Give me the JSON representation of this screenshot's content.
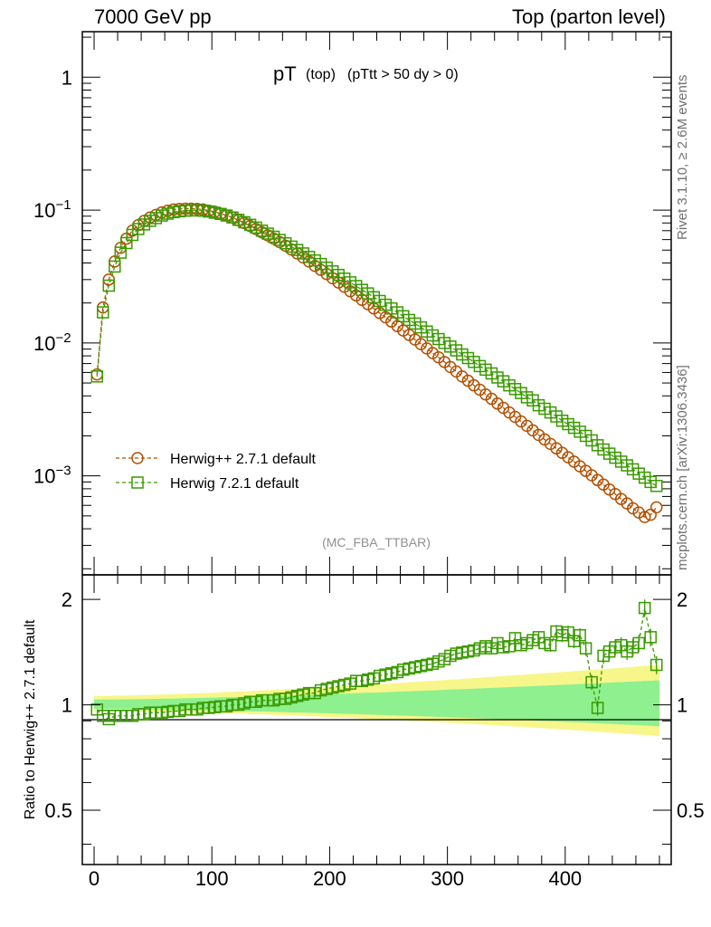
{
  "header": {
    "left": "7000 GeV pp",
    "right": "Top (parton level)"
  },
  "side_labels": {
    "rivet": "Rivet 3.1.10, ≥ 2.6M events",
    "mcplots": "mcplots.cern.ch [arXiv:1306.3436]"
  },
  "chart_data": [
    {
      "type": "line",
      "title": "pT",
      "title_small": "(top)",
      "title_cut": "(pTtt > 50 dy > 0)",
      "analysis_tag": "(MC_FBA_TTBAR)",
      "xlim": [
        -10,
        490
      ],
      "ylim": [
        0.00018,
        2.2
      ],
      "yscale": "log",
      "yticks": [
        "1",
        "10^-1",
        "10^-2",
        "10^-3"
      ],
      "legend_position": "bottom-left",
      "x": [
        2.5,
        7.5,
        12.5,
        17.5,
        22.5,
        27.5,
        32.5,
        37.5,
        42.5,
        47.5,
        52.5,
        57.5,
        62.5,
        67.5,
        72.5,
        77.5,
        82.5,
        87.5,
        92.5,
        97.5,
        102.5,
        107.5,
        112.5,
        117.5,
        122.5,
        127.5,
        132.5,
        137.5,
        142.5,
        147.5,
        152.5,
        157.5,
        162.5,
        167.5,
        172.5,
        177.5,
        182.5,
        187.5,
        192.5,
        197.5,
        202.5,
        207.5,
        212.5,
        217.5,
        222.5,
        227.5,
        232.5,
        237.5,
        242.5,
        247.5,
        252.5,
        257.5,
        262.5,
        267.5,
        272.5,
        277.5,
        282.5,
        287.5,
        292.5,
        297.5,
        302.5,
        307.5,
        312.5,
        317.5,
        322.5,
        327.5,
        332.5,
        337.5,
        342.5,
        347.5,
        352.5,
        357.5,
        362.5,
        367.5,
        372.5,
        377.5,
        382.5,
        387.5,
        392.5,
        397.5,
        402.5,
        407.5,
        412.5,
        417.5,
        422.5,
        427.5,
        432.5,
        437.5,
        442.5,
        447.5,
        452.5,
        457.5,
        462.5,
        467.5,
        472.5,
        477.5
      ],
      "series": [
        {
          "name": "Herwig++ 2.7.1 default",
          "color": "#b25000",
          "marker": "circle",
          "values": [
            0.0058,
            0.0185,
            0.03,
            0.041,
            0.052,
            0.061,
            0.07,
            0.077,
            0.083,
            0.088,
            0.092,
            0.096,
            0.099,
            0.101,
            0.102,
            0.1025,
            0.1025,
            0.102,
            0.101,
            0.099,
            0.097,
            0.094,
            0.091,
            0.088,
            0.084,
            0.08,
            0.076,
            0.072,
            0.068,
            0.0645,
            0.061,
            0.0575,
            0.054,
            0.0505,
            0.0472,
            0.044,
            0.041,
            0.038,
            0.0355,
            0.033,
            0.0307,
            0.0285,
            0.0265,
            0.0245,
            0.0228,
            0.0211,
            0.0196,
            0.0182,
            0.0168,
            0.0156,
            0.0145,
            0.0134,
            0.0124,
            0.0115,
            0.0106,
            0.0098,
            0.0091,
            0.0084,
            0.0078,
            0.0072,
            0.0066,
            0.0061,
            0.0056,
            0.0052,
            0.0048,
            0.00445,
            0.0041,
            0.0038,
            0.0035,
            0.00325,
            0.003,
            0.00278,
            0.00257,
            0.00238,
            0.0022,
            0.00203,
            0.00188,
            0.00174,
            0.00161,
            0.00149,
            0.00138,
            0.00128,
            0.00118,
            0.00109,
            0.00101,
            0.00093,
            0.00086,
            0.00079,
            0.00073,
            0.00067,
            0.00062,
            0.00057,
            0.00053,
            0.00049,
            0.00051,
            0.00058
          ]
        },
        {
          "name": "Herwig 7.2.1 default",
          "color": "#3a9a00",
          "marker": "square",
          "values": [
            0.0056,
            0.017,
            0.027,
            0.0376,
            0.0478,
            0.0565,
            0.065,
            0.072,
            0.078,
            0.083,
            0.087,
            0.091,
            0.094,
            0.0965,
            0.098,
            0.099,
            0.0995,
            0.0995,
            0.099,
            0.0975,
            0.0955,
            0.0935,
            0.091,
            0.088,
            0.0845,
            0.081,
            0.0775,
            0.0738,
            0.07,
            0.0665,
            0.063,
            0.0596,
            0.0563,
            0.0531,
            0.0501,
            0.0472,
            0.0444,
            0.0418,
            0.0393,
            0.0369,
            0.0346,
            0.0325,
            0.0305,
            0.0286,
            0.0268,
            0.0251,
            0.0236,
            0.0221,
            0.0207,
            0.0194,
            0.0182,
            0.017,
            0.0159,
            0.0149,
            0.014,
            0.0131,
            0.0122,
            0.0114,
            0.0107,
            0.01,
            0.0094,
            0.0088,
            0.0082,
            0.0077,
            0.0072,
            0.0067,
            0.0063,
            0.0059,
            0.0055,
            0.00515,
            0.0048,
            0.0045,
            0.0042,
            0.0039,
            0.0037,
            0.0034,
            0.0032,
            0.003,
            0.0028,
            0.0026,
            0.00245,
            0.0023,
            0.00215,
            0.002,
            0.00185,
            0.0017,
            0.00158,
            0.00147,
            0.00137,
            0.00128,
            0.0012,
            0.00112,
            0.00104,
            0.00097,
            0.0009,
            0.00084
          ]
        }
      ]
    },
    {
      "type": "line",
      "ylabel": "Ratio to Herwig++ 2.7.1 default",
      "xlim": [
        -10,
        490
      ],
      "ylim": [
        0.35,
        2.35
      ],
      "ytick_labels": [
        "0.5",
        "1",
        "2"
      ],
      "xtick_labels": [
        "0",
        "100",
        "200",
        "300",
        "400"
      ],
      "band_colors": {
        "outer": "#f7f68a",
        "inner": "#8ef08e"
      },
      "series": [
        {
          "name": "Herwig 7.2.1 default",
          "color": "#3a9a00",
          "marker": "square",
          "values": [
            0.97,
            0.93,
            0.91,
            0.93,
            0.93,
            0.93,
            0.93,
            0.94,
            0.94,
            0.95,
            0.95,
            0.95,
            0.955,
            0.96,
            0.96,
            0.97,
            0.97,
            0.97,
            0.98,
            0.98,
            0.985,
            0.99,
            0.99,
            1.0,
            1.0,
            1.01,
            1.02,
            1.02,
            1.03,
            1.03,
            1.03,
            1.04,
            1.04,
            1.05,
            1.06,
            1.07,
            1.08,
            1.08,
            1.1,
            1.11,
            1.12,
            1.13,
            1.14,
            1.15,
            1.17,
            1.17,
            1.18,
            1.19,
            1.21,
            1.22,
            1.23,
            1.24,
            1.26,
            1.27,
            1.28,
            1.29,
            1.3,
            1.31,
            1.33,
            1.35,
            1.38,
            1.4,
            1.41,
            1.42,
            1.43,
            1.45,
            1.47,
            1.45,
            1.5,
            1.46,
            1.47,
            1.55,
            1.48,
            1.5,
            1.53,
            1.56,
            1.5,
            1.48,
            1.62,
            1.58,
            1.61,
            1.52,
            1.58,
            1.45,
            1.16,
            0.98,
            1.38,
            1.42,
            1.46,
            1.48,
            1.42,
            1.46,
            1.5,
            1.89,
            1.56,
            1.3
          ]
        }
      ]
    }
  ]
}
